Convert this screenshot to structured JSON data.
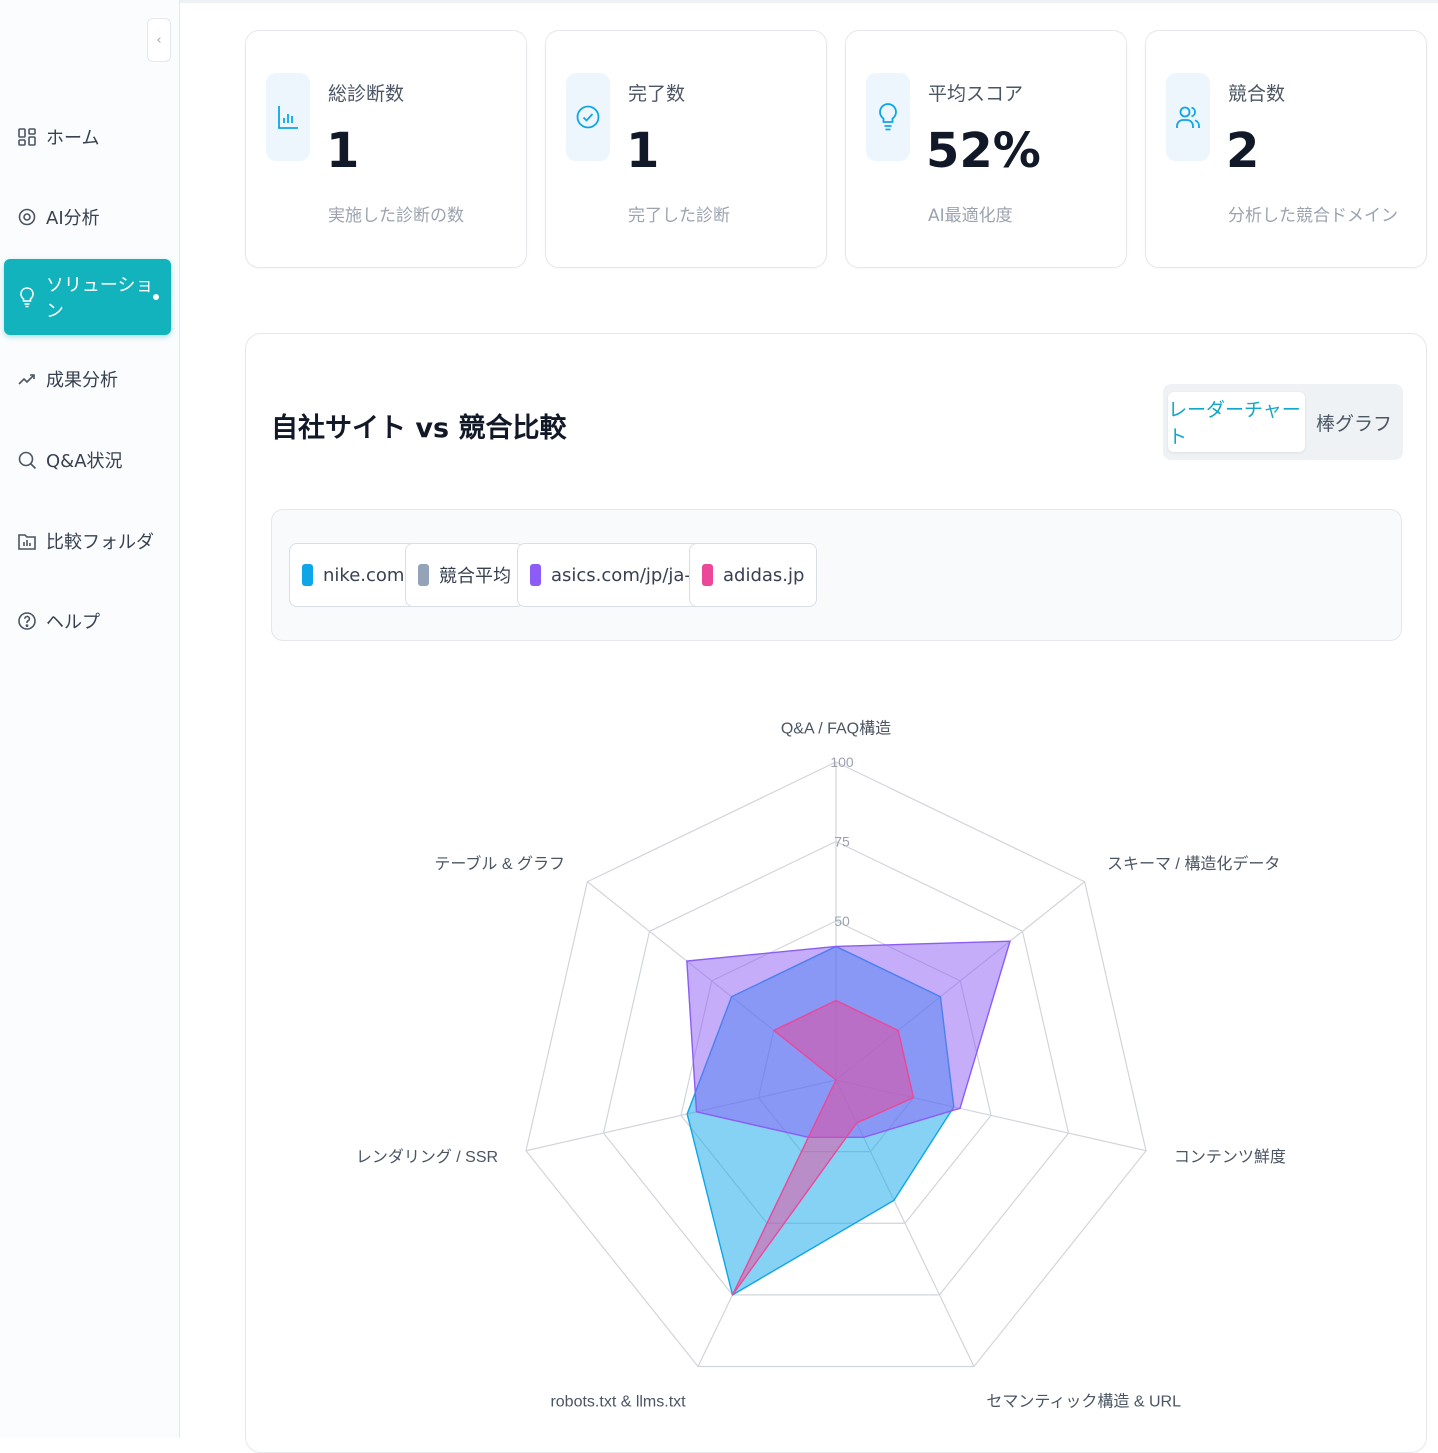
{
  "sidebar": {
    "collapse_icon": "chevron-left",
    "items": [
      {
        "label": "ホーム",
        "icon": "grid-icon"
      },
      {
        "label": "AI分析",
        "icon": "target-icon"
      },
      {
        "label": "ソリューション",
        "icon": "lightbulb-icon",
        "active": true
      },
      {
        "label": "成果分析",
        "icon": "trend-up-icon"
      },
      {
        "label": "Q&A状況",
        "icon": "search-icon"
      },
      {
        "label": "比較フォルダ",
        "icon": "folder-chart-icon"
      },
      {
        "label": "ヘルプ",
        "icon": "help-circle-icon"
      }
    ]
  },
  "stats": [
    {
      "label": "総診断数",
      "value": "1",
      "sub": "実施した診断の数",
      "icon": "bar-chart-icon"
    },
    {
      "label": "完了数",
      "value": "1",
      "sub": "完了した診断",
      "icon": "check-circle-icon"
    },
    {
      "label": "平均スコア",
      "value": "52%",
      "sub": "AI最適化度",
      "icon": "lightbulb-icon"
    },
    {
      "label": "競合数",
      "value": "2",
      "sub": "分析した競合ドメイン",
      "icon": "users-icon"
    }
  ],
  "comparison": {
    "title": "自社サイト vs 競合比較",
    "tabs": [
      "レーダーチャート",
      "棒グラフ"
    ],
    "active_tab": "レーダーチャート"
  },
  "chart_data": {
    "type": "radar",
    "axes": [
      "Q&A / FAQ構造",
      "スキーマ / 構造化データ",
      "コンテンツ鮮度",
      "セマンティック構造 & URL",
      "robots.txt & llms.txt",
      "レンダリング / SSR",
      "テーブル & グラフ"
    ],
    "rticks": [
      50,
      75,
      100
    ],
    "rlim": [
      0,
      100
    ],
    "series": [
      {
        "name": "nike.com",
        "color": "#0ea5e9",
        "values": [
          42,
          42,
          38,
          42,
          75,
          48,
          42
        ]
      },
      {
        "name": "競合平均",
        "color": "#94a3b8",
        "values": [
          0,
          0,
          0,
          0,
          0,
          0,
          0
        ]
      },
      {
        "name": "asics.com/jp/ja-jp",
        "color": "#8b5cf6",
        "values": [
          42,
          70,
          40,
          20,
          20,
          45,
          60
        ]
      },
      {
        "name": "adidas.jp",
        "color": "#ec4899",
        "values": [
          25,
          25,
          25,
          15,
          75,
          0,
          25
        ]
      }
    ]
  }
}
